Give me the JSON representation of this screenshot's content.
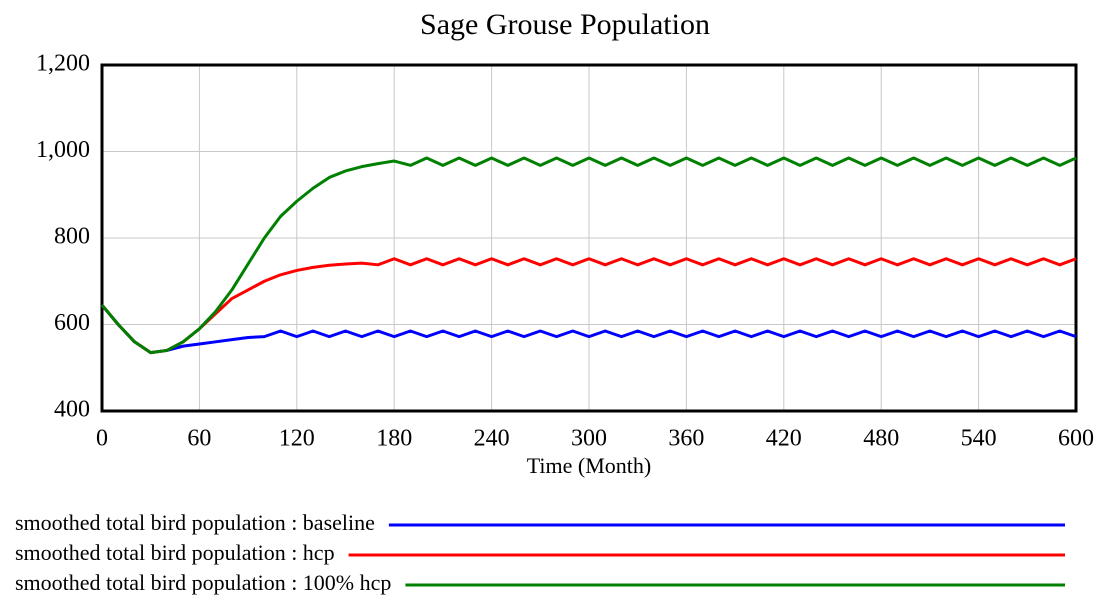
{
  "chart_data": {
    "type": "line",
    "title": "Sage Grouse Population",
    "x_label": "Time (Month)",
    "x": [
      0,
      10,
      20,
      30,
      40,
      50,
      60,
      70,
      80,
      90,
      100,
      110,
      120,
      130,
      140,
      150,
      160,
      170,
      180,
      190,
      200,
      210,
      220,
      230,
      240,
      250,
      260,
      270,
      280,
      290,
      300,
      310,
      320,
      330,
      340,
      350,
      360,
      370,
      380,
      390,
      400,
      410,
      420,
      430,
      440,
      450,
      460,
      470,
      480,
      490,
      500,
      510,
      520,
      530,
      540,
      550,
      560,
      570,
      580,
      590,
      600
    ],
    "xlim": [
      0,
      600
    ],
    "xticks": [
      0,
      60,
      120,
      180,
      240,
      300,
      360,
      420,
      480,
      540,
      600
    ],
    "ylim": [
      400,
      1200
    ],
    "yticks": [
      400,
      600,
      800,
      {
        "value": 1000,
        "label": "1,000"
      },
      {
        "value": 1200,
        "label": "1,200"
      }
    ],
    "grid": true,
    "series": [
      {
        "name": "smoothed total bird population : baseline",
        "color": "#0000ff",
        "values": [
          645,
          600,
          560,
          535,
          540,
          550,
          555,
          560,
          565,
          570,
          572,
          585,
          572,
          585,
          572,
          585,
          572,
          585,
          572,
          585,
          572,
          585,
          572,
          585,
          572,
          585,
          572,
          585,
          572,
          585,
          572,
          585,
          572,
          585,
          572,
          585,
          572,
          585,
          572,
          585,
          572,
          585,
          572,
          585,
          572,
          585,
          572,
          585,
          572,
          585,
          572,
          585,
          572,
          585,
          572,
          585,
          572,
          585,
          572,
          585,
          572
        ]
      },
      {
        "name": "smoothed total bird population : hcp",
        "color": "#ff0000",
        "values": [
          645,
          600,
          560,
          535,
          540,
          560,
          590,
          625,
          660,
          680,
          700,
          715,
          725,
          732,
          737,
          740,
          742,
          738,
          752,
          738,
          752,
          738,
          752,
          738,
          752,
          738,
          752,
          738,
          752,
          738,
          752,
          738,
          752,
          738,
          752,
          738,
          752,
          738,
          752,
          738,
          752,
          738,
          752,
          738,
          752,
          738,
          752,
          738,
          752,
          738,
          752,
          738,
          752,
          738,
          752,
          738,
          752,
          738,
          752,
          738,
          752
        ]
      },
      {
        "name": "smoothed total bird population : 100% hcp",
        "color": "#008000",
        "values": [
          645,
          600,
          560,
          535,
          540,
          560,
          590,
          630,
          680,
          740,
          800,
          850,
          885,
          915,
          940,
          955,
          965,
          972,
          978,
          968,
          985,
          968,
          985,
          968,
          985,
          968,
          985,
          968,
          985,
          968,
          985,
          968,
          985,
          968,
          985,
          968,
          985,
          968,
          985,
          968,
          985,
          968,
          985,
          968,
          985,
          968,
          985,
          968,
          985,
          968,
          985,
          968,
          985,
          968,
          985,
          968,
          985,
          968,
          985,
          968,
          985
        ]
      }
    ]
  }
}
